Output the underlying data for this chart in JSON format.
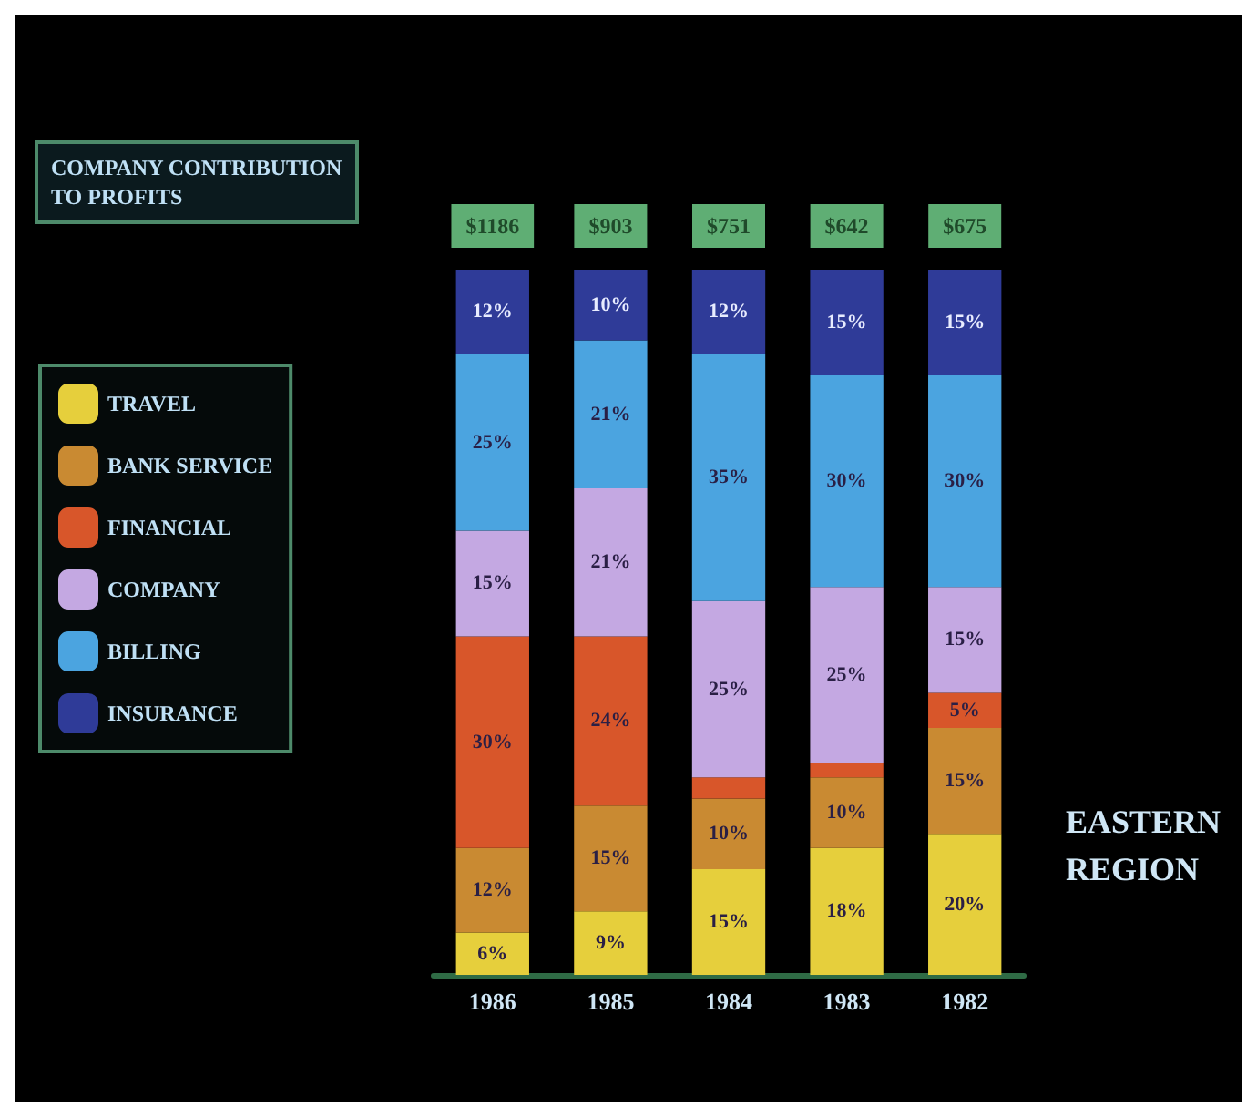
{
  "chart_data": {
    "type": "bar",
    "stacked": true,
    "title": "COMPANY CONTRIBUTION\nTO PROFITS",
    "annotations": [
      "EASTERN\nREGION",
      {
        "text": "$1186",
        "x": "1986",
        "y": 100
      },
      {
        "text": "$903",
        "x": "1985",
        "y": 100
      },
      {
        "text": "$751",
        "x": "1984",
        "y": 100
      },
      {
        "text": "$642",
        "x": "1983",
        "y": 100
      },
      {
        "text": "$675",
        "x": "1982",
        "y": 100
      }
    ],
    "categories": [
      "1986",
      "1985",
      "1984",
      "1983",
      "1982"
    ],
    "legend": "left",
    "tick_labels": "x",
    "series": [
      {
        "name": "TRAVEL",
        "color": "#e6cf3c",
        "values": [
          6,
          9,
          15,
          18,
          20
        ],
        "value_labels": [
          "6%",
          "9%",
          "15%",
          "18%",
          "20%"
        ]
      },
      {
        "name": "BANK SERVICE",
        "color": "#c98a32",
        "values": [
          12,
          15,
          10,
          10,
          15
        ],
        "value_labels": [
          "12%",
          "15%",
          "10%",
          "10%",
          "15%"
        ]
      },
      {
        "name": "FINANCIAL",
        "color": "#d8562a",
        "values": [
          30,
          24,
          3,
          2,
          5
        ],
        "value_labels": [
          "30%",
          "24%",
          null,
          null,
          "5%"
        ]
      },
      {
        "name": "COMPANY",
        "color": "#c4a8e2",
        "values": [
          15,
          21,
          25,
          25,
          15
        ],
        "value_labels": [
          "15%",
          "21%",
          "25%",
          "25%",
          "15%"
        ]
      },
      {
        "name": "BILLING",
        "color": "#4ba4e0",
        "values": [
          25,
          21,
          35,
          30,
          30
        ],
        "value_labels": [
          "25%",
          "21%",
          "35%",
          "30%",
          "30%"
        ]
      },
      {
        "name": "INSURANCE",
        "color": "#2f3b98",
        "values": [
          12,
          10,
          12,
          15,
          15
        ],
        "value_labels": [
          "12%",
          "10%",
          "12%",
          "15%",
          "15%"
        ]
      }
    ]
  }
}
